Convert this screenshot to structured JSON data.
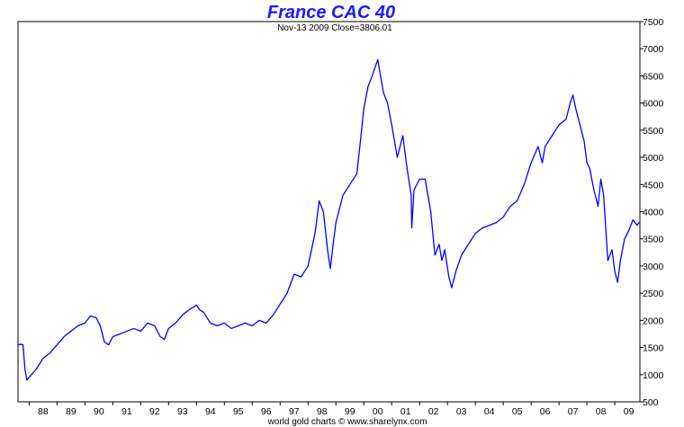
{
  "colors": {
    "line": "#0000ff",
    "title": "#1a1aff",
    "grid": "#dce8f0",
    "background": "#ffffff"
  },
  "chart_data": {
    "type": "line",
    "title": "France CAC 40",
    "subtitle": "Nov-13  2009   Close=3806.01",
    "footer": "world gold charts © www.sharelynx.com",
    "xlabel": "",
    "ylabel": "",
    "x_tick_labels": [
      "88",
      "89",
      "90",
      "91",
      "92",
      "93",
      "94",
      "95",
      "96",
      "97",
      "98",
      "99",
      "00",
      "01",
      "02",
      "03",
      "04",
      "05",
      "06",
      "07",
      "08",
      "09"
    ],
    "xlim": [
      1987.6,
      2009.9
    ],
    "ylim": [
      500,
      7500
    ],
    "y_ticks": [
      500,
      1000,
      1500,
      2000,
      2500,
      3000,
      3500,
      4000,
      4500,
      5000,
      5500,
      6000,
      6500,
      7000,
      7500
    ],
    "grid": true,
    "y_axis_side": "right",
    "series": [
      {
        "x": [
          1987.6,
          1987.7,
          1987.78,
          1987.85,
          1987.92,
          1988.0,
          1988.25,
          1988.5,
          1988.75,
          1989.0,
          1989.25,
          1989.5,
          1989.75,
          1990.0,
          1990.2,
          1990.4,
          1990.55,
          1990.7,
          1990.85,
          1991.0,
          1991.25,
          1991.5,
          1991.75,
          1992.0,
          1992.25,
          1992.5,
          1992.7,
          1992.85,
          1993.0,
          1993.25,
          1993.5,
          1993.75,
          1994.0,
          1994.1,
          1994.25,
          1994.5,
          1994.75,
          1995.0,
          1995.25,
          1995.5,
          1995.75,
          1996.0,
          1996.25,
          1996.5,
          1996.75,
          1997.0,
          1997.25,
          1997.5,
          1997.75,
          1998.0,
          1998.25,
          1998.4,
          1998.55,
          1998.7,
          1998.8,
          1998.9,
          1999.0,
          1999.25,
          1999.5,
          1999.75,
          1999.9,
          2000.0,
          2000.15,
          2000.3,
          2000.5,
          2000.7,
          2000.85,
          2001.0,
          2001.2,
          2001.4,
          2001.55,
          2001.7,
          2001.72,
          2001.8,
          2002.0,
          2002.2,
          2002.4,
          2002.55,
          2002.7,
          2002.8,
          2002.9,
          2003.05,
          2003.15,
          2003.3,
          2003.5,
          2003.75,
          2004.0,
          2004.25,
          2004.5,
          2004.75,
          2005.0,
          2005.25,
          2005.5,
          2005.75,
          2006.0,
          2006.25,
          2006.4,
          2006.5,
          2006.75,
          2007.0,
          2007.25,
          2007.4,
          2007.5,
          2007.6,
          2007.75,
          2007.9,
          2008.0,
          2008.1,
          2008.25,
          2008.4,
          2008.5,
          2008.6,
          2008.75,
          2008.9,
          2009.0,
          2009.1,
          2009.2,
          2009.35,
          2009.5,
          2009.65,
          2009.8,
          2009.87
        ],
        "y": [
          1550,
          1560,
          1550,
          1100,
          900,
          950,
          1100,
          1300,
          1400,
          1550,
          1700,
          1800,
          1900,
          1950,
          2080,
          2050,
          1900,
          1600,
          1550,
          1700,
          1750,
          1800,
          1850,
          1800,
          1950,
          1900,
          1700,
          1650,
          1850,
          1950,
          2100,
          2200,
          2280,
          2200,
          2150,
          1950,
          1900,
          1950,
          1850,
          1900,
          1950,
          1900,
          2000,
          1950,
          2100,
          2300,
          2500,
          2850,
          2800,
          3000,
          3600,
          4200,
          4000,
          3300,
          2950,
          3400,
          3800,
          4300,
          4500,
          4700,
          5400,
          5900,
          6300,
          6500,
          6800,
          6200,
          6000,
          5600,
          5000,
          5400,
          4800,
          4300,
          3700,
          4400,
          4600,
          4600,
          4000,
          3200,
          3400,
          3100,
          3300,
          2800,
          2600,
          2900,
          3200,
          3400,
          3600,
          3700,
          3750,
          3800,
          3900,
          4100,
          4200,
          4500,
          4900,
          5200,
          4900,
          5200,
          5400,
          5600,
          5700,
          6000,
          6150,
          5900,
          5600,
          5300,
          4900,
          4800,
          4400,
          4100,
          4600,
          4300,
          3100,
          3300,
          2900,
          2700,
          3100,
          3500,
          3650,
          3850,
          3750,
          3806
        ]
      }
    ]
  }
}
